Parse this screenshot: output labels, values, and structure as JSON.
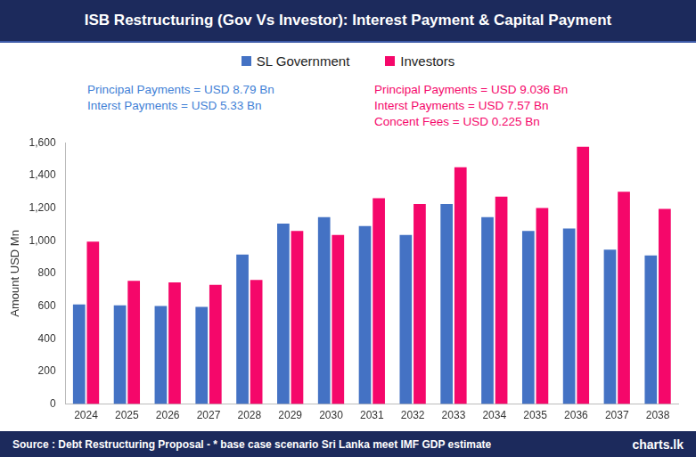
{
  "chart_data": {
    "type": "bar",
    "title": "ISB Restructuring (Gov Vs Investor): Interest Payment & Capital Payment",
    "y_label": "Amount USD Mn",
    "categories": [
      "2024",
      "2025",
      "2026",
      "2027",
      "2028",
      "2029",
      "2030",
      "2031",
      "2032",
      "2033",
      "2034",
      "2035",
      "2036",
      "2037",
      "2038"
    ],
    "series": [
      {
        "name": "SL Government",
        "color": "#4472c4",
        "values": [
          610,
          605,
          600,
          595,
          915,
          1105,
          1145,
          1090,
          1035,
          1225,
          1145,
          1060,
          1075,
          945,
          910
        ]
      },
      {
        "name": "Investors",
        "color": "#f5076a",
        "values": [
          995,
          755,
          745,
          730,
          760,
          1060,
          1035,
          1260,
          1225,
          1450,
          1270,
          1200,
          1575,
          1300,
          1195
        ]
      }
    ],
    "annotations": [
      {
        "color": "#3f7fd6",
        "lines": [
          "Principal Payments = USD 8.79 Bn",
          "Interst Payments = USD 5.33 Bn"
        ]
      },
      {
        "color": "#f5076a",
        "lines": [
          "Principal Payments = USD 9.036 Bn",
          "Interst Payments = USD 7.57 Bn",
          "Concent Fees = USD 0.225 Bn"
        ]
      }
    ],
    "source": "Source : Debt Restructuring Proposal - * base case scenario Sri Lanka meet IMF GDP estimate",
    "brand": "charts.lk",
    "ylim": [
      0,
      1600
    ],
    "yticks": [
      0,
      200,
      400,
      600,
      800,
      {
        "value": 1000,
        "label": "1,000"
      },
      {
        "value": 1200,
        "label": "1,200"
      },
      {
        "value": 1400,
        "label": "1,400"
      },
      {
        "value": 1600,
        "label": "1,600"
      }
    ],
    "grid": false,
    "legend": "top"
  }
}
